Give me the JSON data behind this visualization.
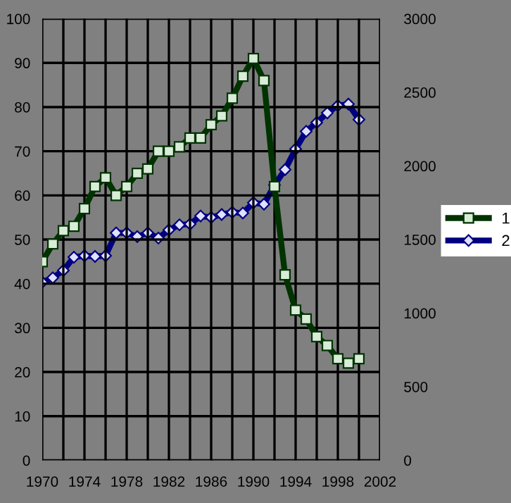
{
  "chart_data": {
    "type": "line",
    "x": [
      1970,
      1971,
      1972,
      1973,
      1974,
      1975,
      1976,
      1977,
      1978,
      1979,
      1980,
      1981,
      1982,
      1983,
      1984,
      1985,
      1986,
      1987,
      1988,
      1989,
      1990,
      1991,
      1992,
      1993,
      1994,
      1995,
      1996,
      1997,
      1998,
      1999,
      2000
    ],
    "series": [
      {
        "name": "1",
        "color": "#003300",
        "marker": "square",
        "values": [
          45,
          49,
          52,
          53,
          57,
          62,
          64,
          60,
          62,
          65,
          66,
          70,
          70,
          71,
          73,
          73,
          76,
          78,
          82,
          87,
          91,
          86,
          62,
          42,
          34,
          32,
          28,
          26,
          23,
          22,
          23
        ]
      },
      {
        "name": "2",
        "color": "#000080",
        "marker": "diamond",
        "axis": "y2",
        "values": [
          1210,
          1240,
          1290,
          1380,
          1390,
          1385,
          1390,
          1545,
          1545,
          1520,
          1545,
          1510,
          1565,
          1600,
          1605,
          1660,
          1650,
          1670,
          1685,
          1680,
          1750,
          1740,
          1870,
          1975,
          2115,
          2235,
          2295,
          2360,
          2410,
          2420,
          2315
        ]
      }
    ],
    "xlim": [
      1970,
      2002
    ],
    "xticks": [
      1970,
      {
        "value": 1972,
        "label": null
      },
      1974,
      {
        "value": 1976,
        "label": null
      },
      1978,
      {
        "value": 1980,
        "label": null
      },
      1982,
      {
        "value": 1984,
        "label": null
      },
      1986,
      {
        "value": 1988,
        "label": null
      },
      1990,
      {
        "value": 1992,
        "label": null
      },
      1994,
      {
        "value": 1996,
        "label": null
      },
      1998,
      {
        "value": 2000,
        "label": null
      },
      2002
    ],
    "ylim": [
      0,
      100
    ],
    "yticks": [
      0,
      10,
      20,
      30,
      40,
      50,
      60,
      70,
      80,
      90,
      100
    ],
    "y2lim": [
      0,
      3000
    ],
    "y2ticks": [
      0,
      500,
      1000,
      1500,
      2000,
      2500,
      3000
    ],
    "grid": true,
    "legend": "right"
  }
}
